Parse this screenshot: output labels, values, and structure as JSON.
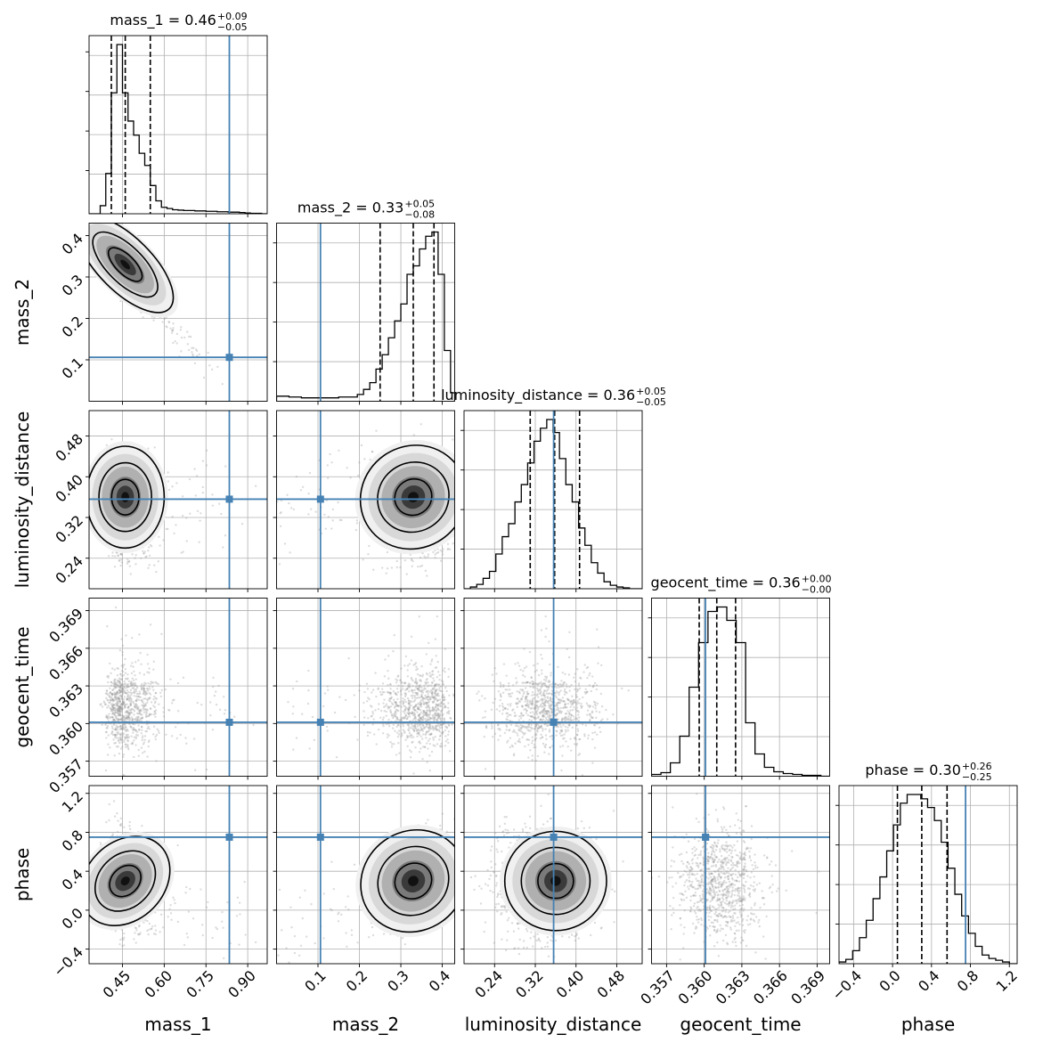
{
  "chart_data": {
    "type": "corner",
    "parameters": [
      {
        "name": "mass_1",
        "xlabel": "mass_1",
        "ylabel": "",
        "median": 0.46,
        "plus": 0.09,
        "minus": 0.05,
        "title_main": "mass_1 = 0.46",
        "title_sup": "+0.09",
        "title_sub": "−0.05",
        "range": [
          0.33,
          0.97
        ],
        "ticks": [
          0.45,
          0.6,
          0.75,
          0.9
        ],
        "tick_labels": [
          "0.45",
          "0.60",
          "0.75",
          "0.90"
        ],
        "truth": 0.834,
        "quantiles": [
          0.41,
          0.46,
          0.55
        ],
        "hist_bins": [
          0.33,
          0.35,
          0.37,
          0.39,
          0.41,
          0.43,
          0.45,
          0.47,
          0.49,
          0.51,
          0.53,
          0.55,
          0.57,
          0.59,
          0.61,
          0.63,
          0.65,
          0.67,
          0.69,
          0.71,
          0.73,
          0.75,
          0.77,
          0.79,
          0.81,
          0.83,
          0.85,
          0.87,
          0.89,
          0.91,
          0.93,
          0.95,
          0.97
        ],
        "hist_counts": [
          0,
          0,
          20,
          100,
          300,
          420,
          300,
          230,
          195,
          150,
          120,
          70,
          32,
          16,
          13,
          10,
          9,
          8,
          8,
          7,
          7,
          6,
          6,
          5,
          5,
          4,
          4,
          3,
          2,
          1,
          1,
          0
        ]
      },
      {
        "name": "mass_2",
        "xlabel": "mass_2",
        "ylabel": "mass_2",
        "median": 0.33,
        "plus": 0.05,
        "minus": 0.08,
        "title_main": "mass_2 = 0.33",
        "title_sup": "+0.05",
        "title_sub": "−0.08",
        "range": [
          0.0,
          0.43
        ],
        "ticks": [
          0.1,
          0.2,
          0.3,
          0.4
        ],
        "tick_labels": [
          "0.1",
          "0.2",
          "0.3",
          "0.4"
        ],
        "truth": 0.106,
        "quantiles": [
          0.25,
          0.33,
          0.38
        ],
        "hist_bins": [
          0.0,
          0.015,
          0.03,
          0.045,
          0.06,
          0.075,
          0.09,
          0.105,
          0.12,
          0.135,
          0.15,
          0.165,
          0.18,
          0.195,
          0.21,
          0.225,
          0.24,
          0.255,
          0.27,
          0.285,
          0.3,
          0.315,
          0.33,
          0.345,
          0.36,
          0.375,
          0.39,
          0.405,
          0.42,
          0.43
        ],
        "hist_counts": [
          6,
          6,
          5,
          5,
          4,
          4,
          4,
          4,
          4,
          4,
          5,
          5,
          5,
          8,
          14,
          22,
          38,
          55,
          75,
          95,
          115,
          150,
          160,
          180,
          195,
          200,
          150,
          60,
          10
        ]
      },
      {
        "name": "luminosity_distance",
        "xlabel": "luminosity_distance",
        "ylabel": "luminosity_distance",
        "median": 0.36,
        "plus": 0.05,
        "minus": 0.05,
        "title_main": "luminosity_distance = 0.36",
        "title_sup": "+0.05",
        "title_sub": "−0.05",
        "range": [
          0.18,
          0.53
        ],
        "ticks": [
          0.24,
          0.32,
          0.4,
          0.48
        ],
        "tick_labels": [
          "0.24",
          "0.32",
          "0.40",
          "0.48"
        ],
        "truth": 0.356,
        "quantiles": [
          0.31,
          0.358,
          0.407
        ],
        "hist_bins": [
          0.18,
          0.1925,
          0.205,
          0.2175,
          0.23,
          0.2425,
          0.255,
          0.2675,
          0.28,
          0.2925,
          0.305,
          0.3175,
          0.33,
          0.3425,
          0.355,
          0.3675,
          0.38,
          0.3925,
          0.405,
          0.4175,
          0.43,
          0.4425,
          0.455,
          0.4675,
          0.48,
          0.4925,
          0.505,
          0.5175,
          0.53
        ],
        "hist_counts": [
          0,
          2,
          5,
          12,
          20,
          40,
          60,
          75,
          100,
          120,
          145,
          170,
          185,
          195,
          180,
          150,
          120,
          100,
          70,
          50,
          30,
          18,
          8,
          4,
          2,
          1,
          0,
          0
        ]
      },
      {
        "name": "geocent_time",
        "xlabel": "geocent_time",
        "ylabel": "geocent_time",
        "median": 0.36,
        "plus": 0.0,
        "minus": 0.0,
        "title_main": "geocent_time = 0.36",
        "title_sup": "+0.00",
        "title_sub": "−0.00",
        "range": [
          0.3558,
          0.37
        ],
        "ticks": [
          0.357,
          0.36,
          0.363,
          0.366,
          0.369
        ],
        "tick_labels": [
          "0.357",
          "0.360",
          "0.363",
          "0.366",
          "0.369"
        ],
        "truth": 0.3601,
        "quantiles": [
          0.3596,
          0.361,
          0.3625
        ],
        "hist_bins": [
          0.3558,
          0.35655,
          0.3573,
          0.35805,
          0.3588,
          0.35955,
          0.3603,
          0.36105,
          0.3618,
          0.36255,
          0.3633,
          0.36405,
          0.3648,
          0.36555,
          0.3663,
          0.36705,
          0.3678,
          0.36855,
          0.3693,
          0.37
        ],
        "hist_counts": [
          2,
          4,
          15,
          45,
          100,
          150,
          185,
          190,
          175,
          150,
          60,
          25,
          10,
          5,
          3,
          2,
          1,
          1,
          0
        ]
      },
      {
        "name": "phase",
        "xlabel": "phase",
        "ylabel": "phase",
        "median": 0.3,
        "plus": 0.26,
        "minus": 0.25,
        "title_main": "phase = 0.30",
        "title_sup": "+0.26",
        "title_sub": "−0.25",
        "range": [
          -0.55,
          1.28
        ],
        "ticks": [
          -0.4,
          0.0,
          0.4,
          0.8,
          1.2
        ],
        "tick_labels": [
          "−0.4",
          "0.0",
          "0.4",
          "0.8",
          "1.2"
        ],
        "truth": 0.75,
        "quantiles": [
          0.05,
          0.3,
          0.56
        ],
        "hist_bins": [
          -0.55,
          -0.48,
          -0.41,
          -0.34,
          -0.27,
          -0.2,
          -0.13,
          -0.06,
          0.01,
          0.08,
          0.15,
          0.22,
          0.29,
          0.36,
          0.43,
          0.5,
          0.57,
          0.64,
          0.71,
          0.78,
          0.85,
          0.92,
          0.99,
          1.06,
          1.13,
          1.2,
          1.28
        ],
        "hist_counts": [
          2,
          5,
          15,
          30,
          50,
          75,
          100,
          130,
          160,
          185,
          195,
          195,
          190,
          180,
          165,
          140,
          110,
          80,
          55,
          35,
          20,
          10,
          6,
          4,
          2,
          0
        ]
      }
    ],
    "ylabel_ticks": {
      "mass_2": {
        "range": [
          0.0,
          0.43
        ],
        "ticks": [
          0.1,
          0.2,
          0.3,
          0.4
        ],
        "tick_labels": [
          "0.1",
          "0.2",
          "0.3",
          "0.4"
        ]
      },
      "luminosity_distance": {
        "range": [
          0.18,
          0.53
        ],
        "ticks": [
          0.24,
          0.32,
          0.4,
          0.48
        ],
        "tick_labels": [
          "0.24",
          "0.32",
          "0.40",
          "0.48"
        ]
      },
      "geocent_time": {
        "range": [
          0.3558,
          0.37
        ],
        "ticks": [
          0.357,
          0.36,
          0.363,
          0.366,
          0.369
        ],
        "tick_labels": [
          "0.357",
          "0.360",
          "0.363",
          "0.366",
          "0.369"
        ]
      },
      "phase": {
        "range": [
          -0.55,
          1.28
        ],
        "ticks": [
          -0.4,
          0.0,
          0.4,
          0.8,
          1.2
        ],
        "tick_labels": [
          "−0.4",
          "0.0",
          "0.4",
          "0.8",
          "1.2"
        ]
      }
    },
    "truth_color": "#4682b4",
    "grid": true
  }
}
